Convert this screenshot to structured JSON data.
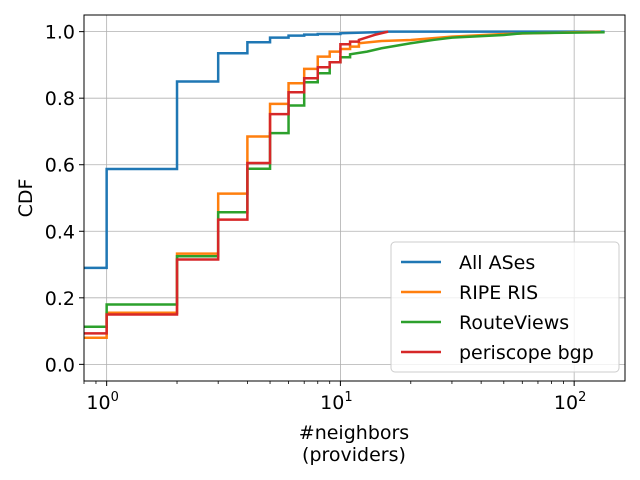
{
  "chart_data": {
    "type": "line",
    "step": true,
    "xscale": "log",
    "xlim": [
      0.8,
      165
    ],
    "ylim": [
      -0.05,
      1.05
    ],
    "xticks": [
      {
        "value": 1,
        "base": "10",
        "exp": "0"
      },
      {
        "value": 10,
        "base": "10",
        "exp": "1"
      },
      {
        "value": 100,
        "base": "10",
        "exp": "2"
      }
    ],
    "yticks": [
      {
        "value": 0.0,
        "label": "0.0"
      },
      {
        "value": 0.2,
        "label": "0.2"
      },
      {
        "value": 0.4,
        "label": "0.4"
      },
      {
        "value": 0.6,
        "label": "0.6"
      },
      {
        "value": 0.8,
        "label": "0.8"
      },
      {
        "value": 1.0,
        "label": "1.0"
      }
    ],
    "xlabel_line1": "#neighbors",
    "xlabel_line2": "(providers)",
    "ylabel": "CDF",
    "grid": true,
    "legend_position": "lower right",
    "series": [
      {
        "name": "All ASes",
        "color": "#1f77b4",
        "points": [
          [
            0.8,
            0.29
          ],
          [
            1,
            0.29
          ],
          [
            1,
            0.587
          ],
          [
            2,
            0.587
          ],
          [
            2,
            0.85
          ],
          [
            3,
            0.85
          ],
          [
            3,
            0.935
          ],
          [
            4,
            0.935
          ],
          [
            4,
            0.968
          ],
          [
            5,
            0.968
          ],
          [
            5,
            0.982
          ],
          [
            6,
            0.982
          ],
          [
            6,
            0.988
          ],
          [
            7,
            0.988
          ],
          [
            7,
            0.991
          ],
          [
            8,
            0.991
          ],
          [
            8,
            0.993
          ],
          [
            10,
            0.993
          ],
          [
            10,
            0.995
          ],
          [
            14,
            0.998
          ],
          [
            16,
            1.0
          ],
          [
            135,
            1.0
          ]
        ]
      },
      {
        "name": "RIPE RIS",
        "color": "#ff7f0e",
        "points": [
          [
            0.8,
            0.08
          ],
          [
            1,
            0.08
          ],
          [
            1,
            0.155
          ],
          [
            2,
            0.155
          ],
          [
            2,
            0.333
          ],
          [
            3,
            0.333
          ],
          [
            3,
            0.513
          ],
          [
            4,
            0.513
          ],
          [
            4,
            0.685
          ],
          [
            5,
            0.685
          ],
          [
            5,
            0.783
          ],
          [
            6,
            0.783
          ],
          [
            6,
            0.845
          ],
          [
            7,
            0.845
          ],
          [
            7,
            0.888
          ],
          [
            8,
            0.888
          ],
          [
            8,
            0.925
          ],
          [
            9,
            0.925
          ],
          [
            9,
            0.94
          ],
          [
            10,
            0.94
          ],
          [
            10,
            0.948
          ],
          [
            11,
            0.948
          ],
          [
            11,
            0.955
          ],
          [
            12,
            0.955
          ],
          [
            12,
            0.965
          ],
          [
            15,
            0.972
          ],
          [
            20,
            0.975
          ],
          [
            30,
            0.985
          ],
          [
            50,
            0.993
          ],
          [
            130,
            1.0
          ]
        ]
      },
      {
        "name": "RouteViews",
        "color": "#2ca02c",
        "points": [
          [
            0.8,
            0.113
          ],
          [
            1,
            0.113
          ],
          [
            1,
            0.18
          ],
          [
            2,
            0.18
          ],
          [
            2,
            0.325
          ],
          [
            3,
            0.325
          ],
          [
            3,
            0.457
          ],
          [
            4,
            0.457
          ],
          [
            4,
            0.588
          ],
          [
            5,
            0.588
          ],
          [
            5,
            0.695
          ],
          [
            6,
            0.695
          ],
          [
            6,
            0.778
          ],
          [
            7,
            0.778
          ],
          [
            7,
            0.848
          ],
          [
            8,
            0.848
          ],
          [
            8,
            0.875
          ],
          [
            9,
            0.875
          ],
          [
            9,
            0.908
          ],
          [
            10,
            0.908
          ],
          [
            10,
            0.923
          ],
          [
            11,
            0.923
          ],
          [
            11,
            0.932
          ],
          [
            13,
            0.94
          ],
          [
            15,
            0.95
          ],
          [
            20,
            0.965
          ],
          [
            25,
            0.975
          ],
          [
            30,
            0.982
          ],
          [
            50,
            0.99
          ],
          [
            60,
            0.995
          ],
          [
            135,
            0.998
          ]
        ]
      },
      {
        "name": "periscope bgp",
        "color": "#d62728",
        "points": [
          [
            0.8,
            0.093
          ],
          [
            1,
            0.093
          ],
          [
            1,
            0.15
          ],
          [
            2,
            0.15
          ],
          [
            2,
            0.315
          ],
          [
            3,
            0.315
          ],
          [
            3,
            0.435
          ],
          [
            4,
            0.435
          ],
          [
            4,
            0.605
          ],
          [
            5,
            0.605
          ],
          [
            5,
            0.752
          ],
          [
            6,
            0.752
          ],
          [
            6,
            0.818
          ],
          [
            7,
            0.818
          ],
          [
            7,
            0.86
          ],
          [
            8,
            0.86
          ],
          [
            8,
            0.893
          ],
          [
            9,
            0.893
          ],
          [
            9,
            0.908
          ],
          [
            10,
            0.908
          ],
          [
            10,
            0.962
          ],
          [
            11,
            0.962
          ],
          [
            11,
            0.97
          ],
          [
            12,
            0.97
          ],
          [
            12,
            0.975
          ],
          [
            14,
            0.99
          ],
          [
            16,
            1.0
          ]
        ]
      }
    ]
  }
}
